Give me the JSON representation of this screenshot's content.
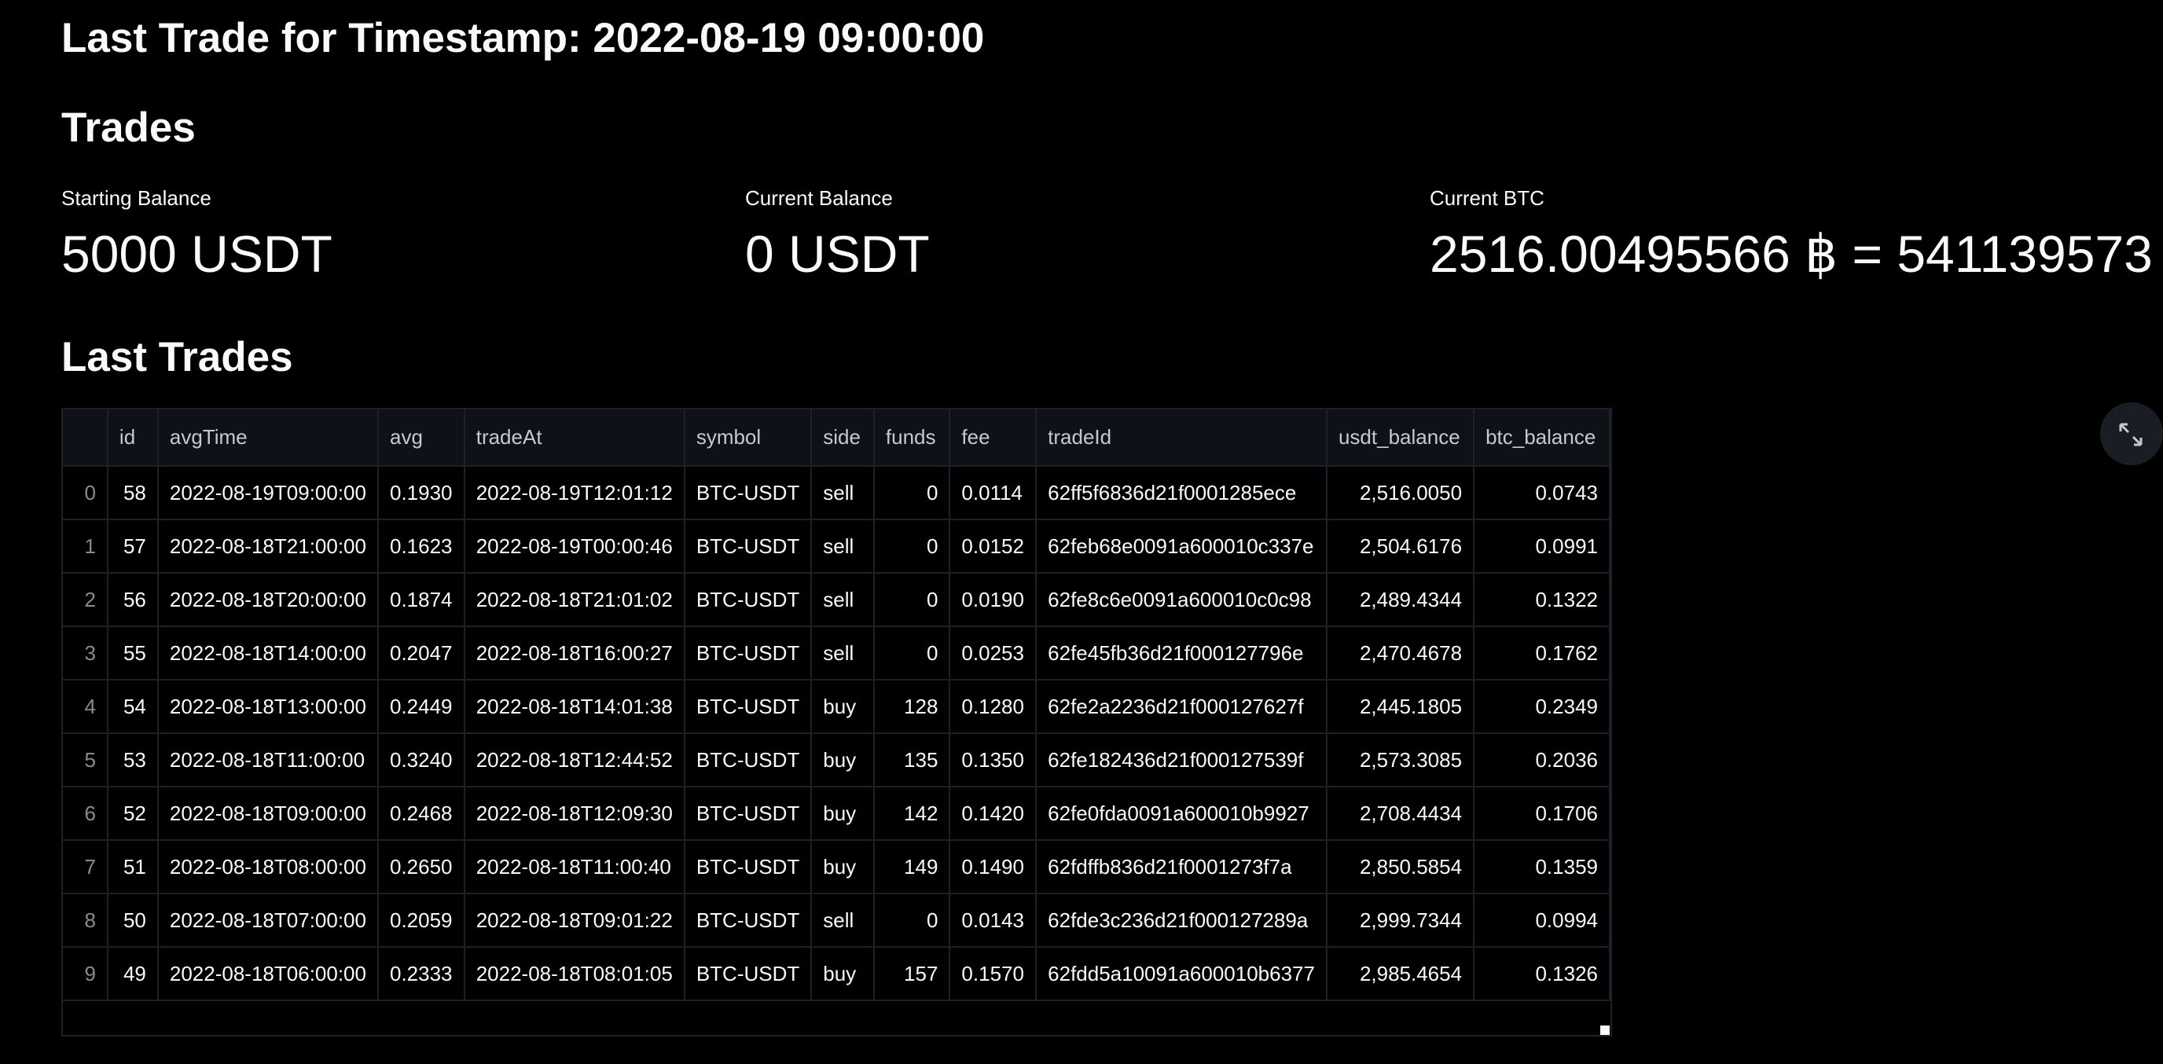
{
  "header": {
    "title": "Last Trade for Timestamp: 2022-08-19 09:00:00",
    "trades_heading": "Trades",
    "last_trades_heading": "Last Trades"
  },
  "metrics": [
    {
      "label": "Starting Balance",
      "value": "5000 USDT"
    },
    {
      "label": "Current Balance",
      "value": "0 USDT"
    },
    {
      "label": "Current BTC",
      "value": "2516.00495566 ฿ = 541139573"
    }
  ],
  "table": {
    "columns": [
      "",
      "id",
      "avgTime",
      "avg",
      "tradeAt",
      "symbol",
      "side",
      "funds",
      "fee",
      "tradeId",
      "usdt_balance",
      "btc_balance"
    ],
    "rows": [
      [
        "0",
        "58",
        "2022-08-19T09:00:00",
        "0.1930",
        "2022-08-19T12:01:12",
        "BTC-USDT",
        "sell",
        "0",
        "0.0114",
        "62ff5f6836d21f0001285ece",
        "2,516.0050",
        "0.0743"
      ],
      [
        "1",
        "57",
        "2022-08-18T21:00:00",
        "0.1623",
        "2022-08-19T00:00:46",
        "BTC-USDT",
        "sell",
        "0",
        "0.0152",
        "62feb68e0091a600010c337e",
        "2,504.6176",
        "0.0991"
      ],
      [
        "2",
        "56",
        "2022-08-18T20:00:00",
        "0.1874",
        "2022-08-18T21:01:02",
        "BTC-USDT",
        "sell",
        "0",
        "0.0190",
        "62fe8c6e0091a600010c0c98",
        "2,489.4344",
        "0.1322"
      ],
      [
        "3",
        "55",
        "2022-08-18T14:00:00",
        "0.2047",
        "2022-08-18T16:00:27",
        "BTC-USDT",
        "sell",
        "0",
        "0.0253",
        "62fe45fb36d21f000127796e",
        "2,470.4678",
        "0.1762"
      ],
      [
        "4",
        "54",
        "2022-08-18T13:00:00",
        "0.2449",
        "2022-08-18T14:01:38",
        "BTC-USDT",
        "buy",
        "128",
        "0.1280",
        "62fe2a2236d21f000127627f",
        "2,445.1805",
        "0.2349"
      ],
      [
        "5",
        "53",
        "2022-08-18T11:00:00",
        "0.3240",
        "2022-08-18T12:44:52",
        "BTC-USDT",
        "buy",
        "135",
        "0.1350",
        "62fe182436d21f000127539f",
        "2,573.3085",
        "0.2036"
      ],
      [
        "6",
        "52",
        "2022-08-18T09:00:00",
        "0.2468",
        "2022-08-18T12:09:30",
        "BTC-USDT",
        "buy",
        "142",
        "0.1420",
        "62fe0fda0091a600010b9927",
        "2,708.4434",
        "0.1706"
      ],
      [
        "7",
        "51",
        "2022-08-18T08:00:00",
        "0.2650",
        "2022-08-18T11:00:40",
        "BTC-USDT",
        "buy",
        "149",
        "0.1490",
        "62fdffb836d21f0001273f7a",
        "2,850.5854",
        "0.1359"
      ],
      [
        "8",
        "50",
        "2022-08-18T07:00:00",
        "0.2059",
        "2022-08-18T09:01:22",
        "BTC-USDT",
        "sell",
        "0",
        "0.0143",
        "62fde3c236d21f000127289a",
        "2,999.7344",
        "0.0994"
      ],
      [
        "9",
        "49",
        "2022-08-18T06:00:00",
        "0.2333",
        "2022-08-18T08:01:05",
        "BTC-USDT",
        "buy",
        "157",
        "0.1570",
        "62fdd5a10091a600010b6377",
        "2,985.4654",
        "0.1326"
      ]
    ]
  },
  "icons": {
    "fullscreen": "expand-icon"
  }
}
